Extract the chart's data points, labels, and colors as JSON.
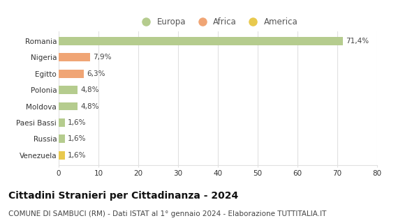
{
  "categories": [
    "Romania",
    "Nigeria",
    "Egitto",
    "Polonia",
    "Moldova",
    "Paesi Bassi",
    "Russia",
    "Venezuela"
  ],
  "values": [
    71.4,
    7.9,
    6.3,
    4.8,
    4.8,
    1.6,
    1.6,
    1.6
  ],
  "labels": [
    "71,4%",
    "7,9%",
    "6,3%",
    "4,8%",
    "4,8%",
    "1,6%",
    "1,6%",
    "1,6%"
  ],
  "colors": [
    "#b5cc8e",
    "#f0a575",
    "#f0a575",
    "#b5cc8e",
    "#b5cc8e",
    "#b5cc8e",
    "#b5cc8e",
    "#e8c94e"
  ],
  "legend": [
    {
      "label": "Europa",
      "color": "#b5cc8e"
    },
    {
      "label": "Africa",
      "color": "#f0a575"
    },
    {
      "label": "America",
      "color": "#e8c94e"
    }
  ],
  "xlim": [
    0,
    80
  ],
  "xticks": [
    0,
    10,
    20,
    30,
    40,
    50,
    60,
    70,
    80
  ],
  "title": "Cittadini Stranieri per Cittadinanza - 2024",
  "subtitle": "COMUNE DI SAMBUCI (RM) - Dati ISTAT al 1° gennaio 2024 - Elaborazione TUTTITALIA.IT",
  "background_color": "#ffffff",
  "grid_color": "#e0e0e0",
  "bar_height": 0.5,
  "title_fontsize": 10,
  "subtitle_fontsize": 7.5,
  "label_fontsize": 7.5,
  "tick_fontsize": 7.5,
  "legend_fontsize": 8.5
}
